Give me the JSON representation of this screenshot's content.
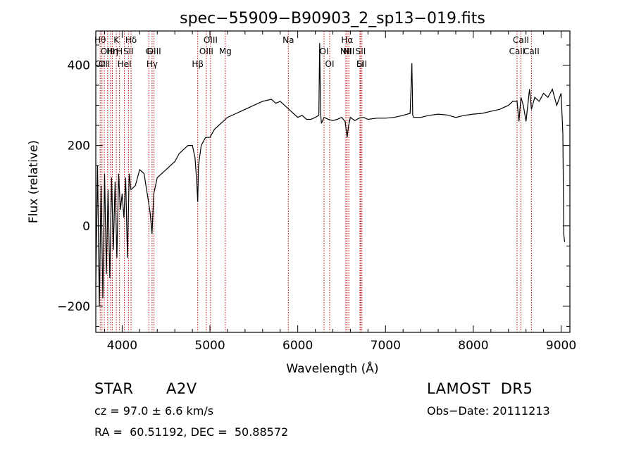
{
  "chart_data": {
    "type": "line",
    "title": "spec−55909−B90903_2_sp13−019.fits",
    "xlabel": "Wavelength (Å)",
    "ylabel": "Flux (relative)",
    "xlim": [
      3700,
      9100
    ],
    "ylim": [
      -265,
      485
    ],
    "xticks": [
      4000,
      5000,
      6000,
      7000,
      8000,
      9000
    ],
    "yticks": [
      -200,
      0,
      200,
      400
    ],
    "ytick_labels": [
      "−200",
      "0",
      "200",
      "400"
    ],
    "grid": false,
    "series": [
      {
        "x": [
          3700,
          3720,
          3740,
          3760,
          3780,
          3800,
          3820,
          3840,
          3860,
          3880,
          3900,
          3920,
          3940,
          3960,
          3980,
          4000,
          4020,
          4040,
          4060,
          4080,
          4100,
          4150,
          4200,
          4250,
          4300,
          4320,
          4340,
          4360,
          4400,
          4450,
          4500,
          4550,
          4600,
          4650,
          4700,
          4750,
          4800,
          4830,
          4850,
          4861,
          4870,
          4900,
          4950,
          5000,
          5050,
          5100,
          5150,
          5200,
          5300,
          5400,
          5500,
          5600,
          5700,
          5750,
          5800,
          5850,
          5900,
          5950,
          6000,
          6050,
          6100,
          6150,
          6200,
          6240,
          6250,
          6260,
          6270,
          6280,
          6300,
          6350,
          6400,
          6450,
          6500,
          6540,
          6563,
          6580,
          6600,
          6650,
          6700,
          6750,
          6800,
          6900,
          7000,
          7100,
          7200,
          7280,
          7300,
          7310,
          7320,
          7400,
          7500,
          7600,
          7700,
          7800,
          7900,
          8000,
          8100,
          8200,
          8300,
          8400,
          8450,
          8498,
          8520,
          8542,
          8570,
          8600,
          8640,
          8662,
          8700,
          8750,
          8800,
          8850,
          8900,
          8950,
          9000,
          9020,
          9030,
          9040
        ],
        "y": [
          -150,
          150,
          -200,
          100,
          -180,
          130,
          -120,
          90,
          -130,
          120,
          -60,
          110,
          -80,
          130,
          40,
          80,
          20,
          120,
          -80,
          130,
          90,
          100,
          140,
          130,
          60,
          30,
          -20,
          80,
          120,
          130,
          140,
          150,
          160,
          180,
          190,
          200,
          200,
          170,
          110,
          60,
          150,
          200,
          220,
          220,
          240,
          250,
          260,
          270,
          280,
          290,
          300,
          310,
          315,
          305,
          310,
          300,
          290,
          280,
          270,
          275,
          265,
          265,
          270,
          275,
          455,
          280,
          255,
          260,
          270,
          265,
          262,
          265,
          270,
          260,
          220,
          250,
          270,
          262,
          268,
          270,
          265,
          268,
          268,
          270,
          275,
          280,
          405,
          275,
          270,
          270,
          275,
          278,
          276,
          270,
          275,
          278,
          280,
          285,
          290,
          300,
          310,
          310,
          260,
          320,
          300,
          260,
          340,
          290,
          320,
          310,
          330,
          320,
          340,
          300,
          330,
          230,
          -20,
          -40
        ]
      }
    ],
    "lines": [
      {
        "x": 3750,
        "top": "Hθ",
        "bottom": "CII"
      },
      {
        "x": 3770,
        "top": "",
        "bottom": ""
      },
      {
        "x": 3797,
        "top": "",
        "bottom": "OII"
      },
      {
        "x": 3835,
        "top": "",
        "bottom": "OIII"
      },
      {
        "x": 3869,
        "top": "",
        "bottom": ""
      },
      {
        "x": 3889,
        "top": "",
        "bottom": "Hη"
      },
      {
        "x": 3934,
        "top": "K",
        "bottom": ""
      },
      {
        "x": 3970,
        "top": "",
        "bottom": "H"
      },
      {
        "x": 4026,
        "top": "",
        "bottom": "HeI"
      },
      {
        "x": 4072,
        "top": "",
        "bottom": "SII"
      },
      {
        "x": 4102,
        "top": "Hδ",
        "bottom": ""
      },
      {
        "x": 4304,
        "top": "",
        "bottom": "G"
      },
      {
        "x": 4341,
        "top": "",
        "bottom": "Hγ"
      },
      {
        "x": 4363,
        "top": "OIII",
        "bottom": ""
      },
      {
        "x": 4861,
        "top": "",
        "bottom": "Hβ"
      },
      {
        "x": 4959,
        "top": "",
        "bottom": "OIII"
      },
      {
        "x": 5007,
        "top": "OIII",
        "bottom": ""
      },
      {
        "x": 5175,
        "top": "",
        "bottom": "Mg"
      },
      {
        "x": 5893,
        "top": "Na",
        "bottom": ""
      },
      {
        "x": 6300,
        "top": "OI",
        "bottom": ""
      },
      {
        "x": 6364,
        "top": "",
        "bottom": "OI"
      },
      {
        "x": 6548,
        "top": "",
        "bottom": "NII"
      },
      {
        "x": 6563,
        "top": "Hα",
        "bottom": ""
      },
      {
        "x": 6583,
        "top": "",
        "bottom": "NII"
      },
      {
        "x": 6708,
        "top": "",
        "bottom": "Li"
      },
      {
        "x": 6717,
        "top": "SII",
        "bottom": ""
      },
      {
        "x": 6731,
        "top": "",
        "bottom": "SII"
      },
      {
        "x": 8498,
        "top": "",
        "bottom": "CaII"
      },
      {
        "x": 8542,
        "top": "CaII",
        "bottom": ""
      },
      {
        "x": 8662,
        "top": "",
        "bottom": "CaII"
      }
    ]
  },
  "info": {
    "class": "STAR",
    "subclass": "A2V",
    "survey": "LAMOST  DR5",
    "cz": "cz = 97.0 ± 6.6 km/s",
    "obs_date": "Obs−Date: 20111213",
    "coords": "RA =  60.51192, DEC =  50.88572"
  }
}
